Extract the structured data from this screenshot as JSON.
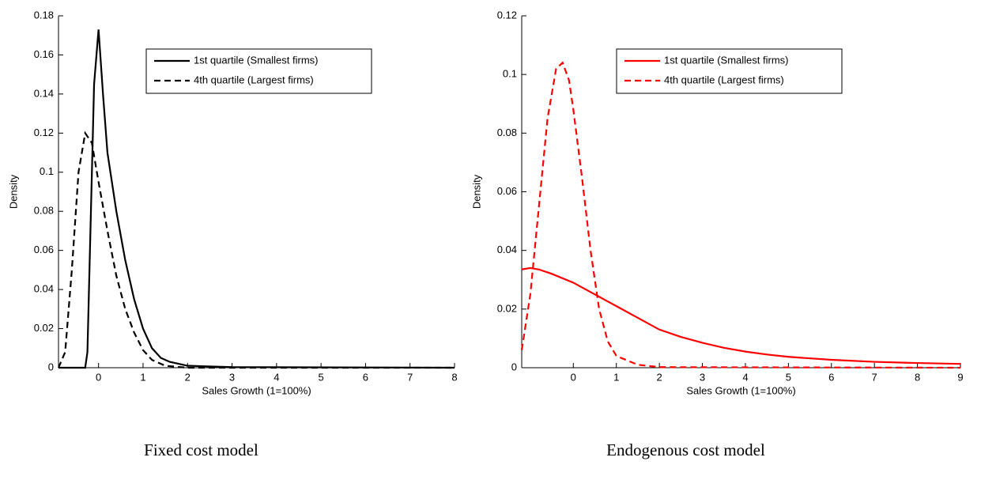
{
  "chart_data": [
    {
      "type": "line",
      "caption": "Fixed cost model",
      "xlabel": "Sales Growth (1=100%)",
      "ylabel": "Density",
      "xlim": [
        -0.9,
        8
      ],
      "ylim": [
        0,
        0.18
      ],
      "xticks": [
        0,
        1,
        2,
        3,
        4,
        5,
        6,
        7,
        8
      ],
      "yticks": [
        0,
        0.02,
        0.04,
        0.06,
        0.08,
        0.1,
        0.12,
        0.14,
        0.16,
        0.18
      ],
      "series": [
        {
          "name": "1st quartile (Smallest firms)",
          "color": "#000000",
          "dash": false,
          "x": [
            -0.9,
            -0.3,
            -0.25,
            -0.1,
            0,
            0.1,
            0.2,
            0.4,
            0.6,
            0.8,
            1.0,
            1.2,
            1.4,
            1.6,
            2.0,
            3,
            8
          ],
          "values": [
            0,
            0,
            0.008,
            0.145,
            0.173,
            0.14,
            0.11,
            0.08,
            0.055,
            0.035,
            0.02,
            0.01,
            0.005,
            0.003,
            0.001,
            0.0003,
            0
          ]
        },
        {
          "name": "4th quartile (Largest firms)",
          "color": "#000000",
          "dash": true,
          "x": [
            -0.9,
            -0.75,
            -0.6,
            -0.45,
            -0.3,
            -0.15,
            0,
            0.2,
            0.4,
            0.6,
            0.8,
            1.0,
            1.2,
            1.5,
            2,
            8
          ],
          "values": [
            0,
            0.008,
            0.05,
            0.1,
            0.12,
            0.115,
            0.095,
            0.07,
            0.047,
            0.03,
            0.018,
            0.009,
            0.004,
            0.001,
            0,
            0
          ]
        }
      ]
    },
    {
      "type": "line",
      "caption": "Endogenous cost model",
      "xlabel": "Sales Growth (1=100%)",
      "ylabel": "Density",
      "xlim": [
        -1.2,
        9
      ],
      "ylim": [
        0,
        0.12
      ],
      "xticks": [
        0,
        1,
        2,
        3,
        4,
        5,
        6,
        7,
        8,
        9
      ],
      "yticks": [
        0,
        0.02,
        0.04,
        0.06,
        0.08,
        0.1,
        0.12
      ],
      "series": [
        {
          "name": "1st quartile (Smallest firms)",
          "color": "#ff0000",
          "dash": false,
          "x": [
            -1.2,
            -1,
            -0.8,
            -0.5,
            0,
            0.5,
            1,
            1.5,
            2,
            2.5,
            3,
            3.5,
            4,
            4.5,
            5,
            6,
            7,
            8,
            9
          ],
          "values": [
            0.0335,
            0.034,
            0.0335,
            0.032,
            0.029,
            0.025,
            0.021,
            0.017,
            0.013,
            0.0105,
            0.0085,
            0.0068,
            0.0055,
            0.0045,
            0.0037,
            0.0027,
            0.002,
            0.0016,
            0.0013
          ]
        },
        {
          "name": "4th quartile (Largest firms)",
          "color": "#ff0000",
          "dash": true,
          "x": [
            -1.2,
            -1,
            -0.8,
            -0.6,
            -0.4,
            -0.25,
            -0.1,
            0,
            0.2,
            0.4,
            0.6,
            0.8,
            1.0,
            1.5,
            2,
            9
          ],
          "values": [
            0.006,
            0.025,
            0.055,
            0.085,
            0.102,
            0.104,
            0.098,
            0.088,
            0.065,
            0.04,
            0.02,
            0.009,
            0.004,
            0.001,
            0.0002,
            0
          ]
        }
      ]
    }
  ]
}
